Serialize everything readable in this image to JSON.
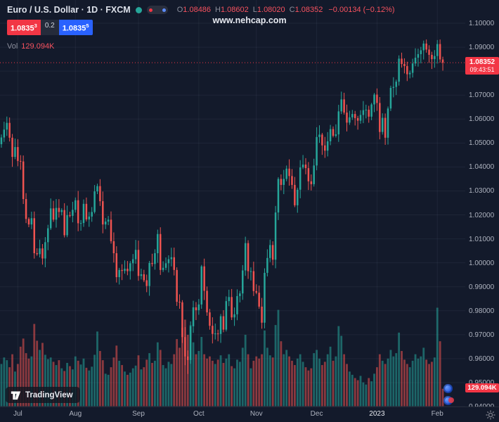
{
  "header": {
    "symbol_title": "Euro / U.S. Dollar · 1D · FXCM",
    "ohlc": {
      "o_label": "O",
      "o": "1.08486",
      "h_label": "H",
      "h": "1.08602",
      "l_label": "L",
      "l": "1.08020",
      "c_label": "C",
      "c": "1.08352",
      "change": "−0.00134 (−0.12%)"
    },
    "bid_main": "1.0835",
    "bid_sup": "3",
    "spread": "0.2",
    "ask_main": "1.0835",
    "ask_sup": "5",
    "vol_label": "Vol",
    "vol_value": "129.094K"
  },
  "watermark": "www.nehcap.com",
  "price_badge": {
    "price": "1.08352",
    "countdown": "09:43:51"
  },
  "volume_badge": "129.094K",
  "logo_text": "TradingView",
  "icons": {
    "logo": "tradingview-logo",
    "gear": "settings-gear",
    "status": "market-status-dot"
  },
  "chart_data": {
    "type": "candlestick",
    "symbol": "EURUSD",
    "timeframe": "1D",
    "exchange": "FXCM",
    "last_price": 1.08352,
    "first_open": 1.0495,
    "high_limit": 1.0932,
    "low_limit": 0.9536,
    "price_axis": {
      "min": 0.94,
      "max": 1.1,
      "step": 0.01,
      "labels": [
        "1.10000",
        "1.09000",
        "1.07000",
        "1.06000",
        "1.05000",
        "1.04000",
        "1.03000",
        "1.02000",
        "1.01000",
        "1.00000",
        "0.99000",
        "0.98000",
        "0.97000",
        "0.96000",
        "0.95000",
        "0.94000"
      ]
    },
    "time_axis": [
      {
        "label": "Jul",
        "index": 6
      },
      {
        "label": "Aug",
        "index": 27
      },
      {
        "label": "Sep",
        "index": 50
      },
      {
        "label": "Oct",
        "index": 72
      },
      {
        "label": "Nov",
        "index": 93
      },
      {
        "label": "Dec",
        "index": 115
      },
      {
        "label": "2023",
        "index": 137,
        "highlight": true
      },
      {
        "label": "Feb",
        "index": 159
      }
    ],
    "closes": [
      1.0523,
      1.0556,
      1.0584,
      1.0522,
      1.0442,
      1.0483,
      1.0425,
      1.0423,
      1.0266,
      1.0183,
      1.016,
      1.0186,
      1.004,
      1.0036,
      1.006,
      1.0018,
      1.0086,
      1.0144,
      1.0227,
      1.018,
      1.0229,
      1.0212,
      1.022,
      1.0115,
      1.0199,
      1.0196,
      1.0221,
      1.0261,
      1.0165,
      1.0166,
      1.0246,
      1.0181,
      1.0193,
      1.0212,
      1.0298,
      1.032,
      1.0257,
      1.016,
      1.0172,
      1.018,
      1.009,
      1.004,
      0.994,
      0.997,
      0.9966,
      0.9975,
      0.9965,
      0.9998,
      1.0015,
      1.0054,
      0.9945,
      0.9952,
      0.9927,
      0.9903,
      0.9999,
      0.9995,
      1.004,
      1.012,
      0.997,
      0.9979,
      0.9998,
      1.0015,
      1.0023,
      0.997,
      0.9837,
      0.9835,
      0.969,
      0.9609,
      0.9594,
      0.9735,
      0.9814,
      0.9802,
      0.9826,
      0.9985,
      0.9883,
      0.9793,
      0.9737,
      0.9703,
      0.9705,
      0.9703,
      0.9777,
      0.9721,
      0.984,
      0.9857,
      0.9772,
      0.9785,
      0.9861,
      0.9872,
      0.9968,
      1.0082,
      0.9965,
      0.9965,
      0.9882,
      0.9875,
      0.9817,
      0.975,
      0.9958,
      1.002,
      1.0074,
      1.0013,
      1.021,
      1.035,
      1.0325,
      1.035,
      1.0393,
      1.0362,
      1.0325,
      1.024,
      1.0305,
      1.0398,
      1.041,
      1.0395,
      1.034,
      1.0328,
      1.0406,
      1.0525,
      1.0535,
      1.049,
      1.0468,
      1.0507,
      1.0558,
      1.053,
      1.0536,
      1.0632,
      1.0682,
      1.0627,
      1.0585,
      1.0607,
      1.0621,
      1.0604,
      1.0593,
      1.0617,
      1.0637,
      1.0639,
      1.061,
      1.0661,
      1.0702,
      1.0667,
      1.0546,
      1.0605,
      1.0522,
      1.0644,
      1.073,
      1.0734,
      1.0756,
      1.0852,
      1.083,
      1.0821,
      1.0787,
      1.0793,
      1.0832,
      1.0856,
      1.0871,
      1.0887,
      1.0915,
      1.089,
      1.0868,
      1.085,
      1.0863,
      1.0913,
      1.0849,
      1.08352
    ],
    "volumes": [
      312,
      360,
      340,
      288,
      384,
      256,
      312,
      440,
      500,
      392,
      352,
      368,
      608,
      484,
      416,
      468,
      380,
      348,
      360,
      328,
      304,
      340,
      280,
      260,
      320,
      296,
      272,
      368,
      336,
      308,
      352,
      284,
      264,
      292,
      380,
      552,
      408,
      340,
      240,
      232,
      288,
      360,
      448,
      336,
      304,
      256,
      232,
      248,
      280,
      300,
      376,
      272,
      288,
      344,
      392,
      320,
      336,
      472,
      416,
      304,
      280,
      328,
      312,
      384,
      496,
      432,
      580,
      640,
      528,
      600,
      472,
      384,
      408,
      512,
      384,
      352,
      368,
      336,
      312,
      344,
      376,
      320,
      352,
      384,
      296,
      280,
      344,
      328,
      432,
      528,
      384,
      280,
      336,
      368,
      352,
      384,
      560,
      432,
      376,
      360,
      600,
      712,
      480,
      384,
      416,
      368,
      336,
      304,
      352,
      384,
      328,
      288,
      264,
      280,
      392,
      416,
      352,
      304,
      328,
      384,
      440,
      336,
      368,
      592,
      520,
      384,
      312,
      256,
      232,
      208,
      192,
      224,
      176,
      160,
      208,
      184,
      240,
      288,
      384,
      336,
      312,
      352,
      416,
      368,
      392,
      544,
      408,
      344,
      312,
      288,
      336,
      384,
      352,
      368,
      432,
      344,
      312,
      328,
      360,
      728,
      480,
      129.094
    ],
    "special_candles": [
      {
        "index": 68,
        "l": 0.9536
      },
      {
        "index": 159,
        "h": 1.093
      },
      {
        "index": 161,
        "o": 1.08486,
        "h": 1.08602,
        "l": 1.0802,
        "c": 1.08352
      }
    ],
    "colors": {
      "up": "#26a69a",
      "down": "#ef5350",
      "vol_up": "rgba(38,166,154,0.55)",
      "vol_down": "rgba(239,83,80,0.55)",
      "grid": "rgba(160,178,210,0.08)",
      "price_line": "#f23645",
      "accent_red": "#f23645",
      "accent_blue": "#2962ff",
      "background": "#131a2b",
      "text": "#b2b5be"
    }
  }
}
